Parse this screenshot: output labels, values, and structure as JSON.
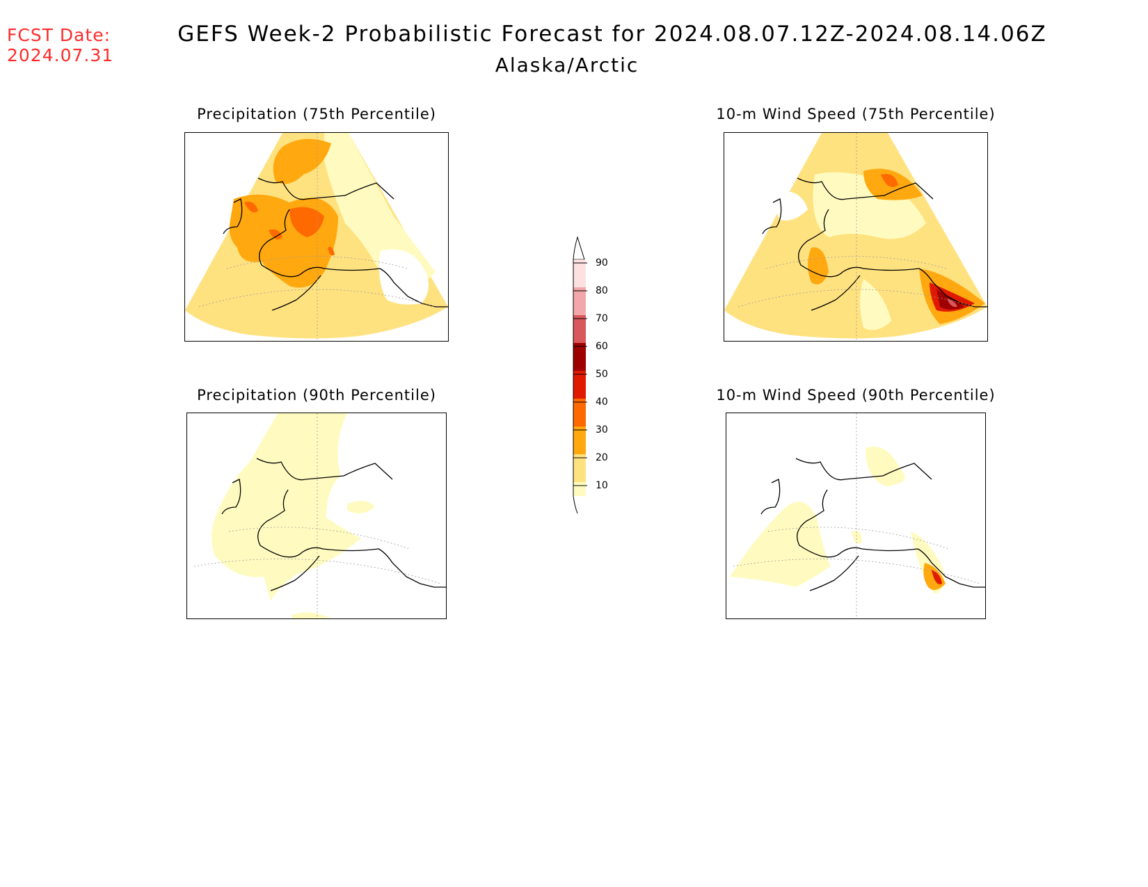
{
  "header": {
    "fcst_label": "FCST Date:",
    "fcst_date": "2024.07.31",
    "title": "GEFS Week-2 Probabilistic Forecast for 2024.08.07.12Z-2024.08.14.06Z",
    "region": "Alaska/Arctic"
  },
  "panels": [
    {
      "title": "Precipitation (75th Percentile)"
    },
    {
      "title": "10-m Wind Speed (75th Percentile)"
    },
    {
      "title": "Precipitation (90th Percentile)"
    },
    {
      "title": "10-m Wind Speed (90th Percentile)"
    }
  ],
  "legend": {
    "ticks": [
      "90",
      "80",
      "70",
      "60",
      "50",
      "40",
      "30",
      "20",
      "10"
    ],
    "colors": {
      "c10": "#fffbc0",
      "c20": "#ffe280",
      "c30": "#ffa810",
      "c40": "#ff6a00",
      "c50": "#e01a00",
      "c60": "#9e0000",
      "c70": "#d9585c",
      "c80": "#f2a8aa",
      "c90": "#fde1e1"
    }
  }
}
